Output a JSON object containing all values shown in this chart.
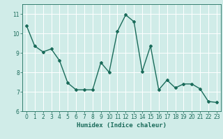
{
  "x": [
    0,
    1,
    2,
    3,
    4,
    5,
    6,
    7,
    8,
    9,
    10,
    11,
    12,
    13,
    14,
    15,
    16,
    17,
    18,
    19,
    20,
    21,
    22,
    23
  ],
  "y": [
    10.4,
    9.35,
    9.05,
    9.2,
    8.6,
    7.45,
    7.1,
    7.1,
    7.1,
    8.5,
    8.0,
    10.1,
    10.95,
    10.6,
    8.05,
    9.35,
    7.1,
    7.6,
    7.2,
    7.4,
    7.4,
    7.15,
    6.5,
    6.45
  ],
  "line_color": "#1a6b5a",
  "marker": "D",
  "marker_size": 2.0,
  "bg_color": "#d0ece8",
  "grid_color": "#ffffff",
  "xlabel": "Humidex (Indice chaleur)",
  "ylim": [
    6,
    11.5
  ],
  "xlim": [
    -0.5,
    23.5
  ],
  "yticks": [
    6,
    7,
    8,
    9,
    10,
    11
  ],
  "xticks": [
    0,
    1,
    2,
    3,
    4,
    5,
    6,
    7,
    8,
    9,
    10,
    11,
    12,
    13,
    14,
    15,
    16,
    17,
    18,
    19,
    20,
    21,
    22,
    23
  ],
  "tick_fontsize": 5.5,
  "xlabel_fontsize": 6.5,
  "line_width": 1.0
}
